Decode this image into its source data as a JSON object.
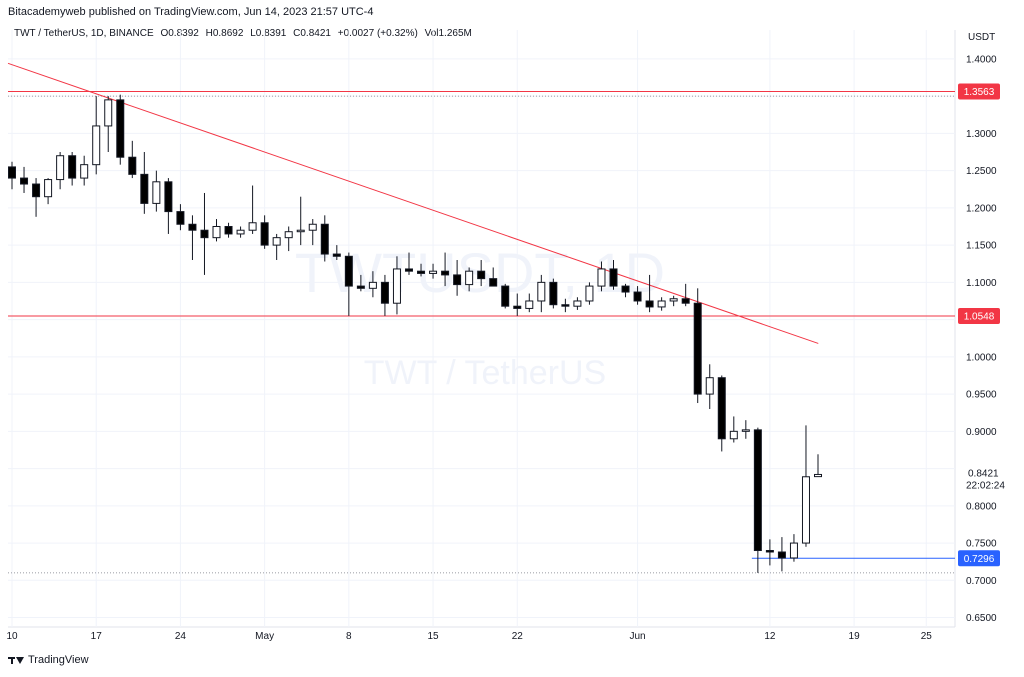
{
  "header": {
    "publisher": "Bitacademyweb published on TradingView.com, Jun 14, 2023 21:57 UTC-4"
  },
  "symbol_info": {
    "pair": "TWT / TetherUS, 1D, BINANCE",
    "open": "O0.8392",
    "high": "H0.8692",
    "low": "L0.8391",
    "close": "C0.8421",
    "change": "+0.0027 (+0.32%)",
    "volume": "Vol1.265M"
  },
  "watermark": {
    "ticker": "TWTUSDT, 1D",
    "name": "TWT / TetherUS"
  },
  "footer": {
    "brand": "TradingView"
  },
  "colors": {
    "up": "#ffffff",
    "down": "#000000",
    "wick": "#131722",
    "trendline": "#f23645",
    "level_line": "#f23645",
    "current_line": "#2962ff",
    "grid": "#f0f3fa"
  },
  "chart_data": {
    "type": "candlestick",
    "currency": "USDT",
    "ylim": [
      0.64,
      1.42
    ],
    "y_ticks": [
      "1.4000",
      "1.3500",
      "1.3000",
      "1.2500",
      "1.2000",
      "1.1500",
      "1.1000",
      "1.0500",
      "1.0000",
      "0.9500",
      "0.9000",
      "0.8500",
      "0.8000",
      "0.7500",
      "0.7000",
      "0.6500"
    ],
    "x_tick_labels": [
      "10",
      "17",
      "24",
      "May",
      "8",
      "15",
      "22",
      "Jun",
      "12",
      "19",
      "25"
    ],
    "x_tick_dates": [
      "2023-04-10",
      "2023-04-17",
      "2023-04-24",
      "2023-05-01",
      "2023-05-08",
      "2023-05-15",
      "2023-05-22",
      "2023-06-01",
      "2023-06-12",
      "2023-06-19",
      "2023-06-25"
    ],
    "candles": [
      {
        "date": "2023-04-10",
        "o": 1.255,
        "h": 1.262,
        "l": 1.225,
        "c": 1.24
      },
      {
        "date": "2023-04-11",
        "o": 1.24,
        "h": 1.255,
        "l": 1.22,
        "c": 1.232
      },
      {
        "date": "2023-04-12",
        "o": 1.232,
        "h": 1.24,
        "l": 1.188,
        "c": 1.215
      },
      {
        "date": "2023-04-13",
        "o": 1.215,
        "h": 1.24,
        "l": 1.205,
        "c": 1.238
      },
      {
        "date": "2023-04-14",
        "o": 1.238,
        "h": 1.275,
        "l": 1.225,
        "c": 1.27
      },
      {
        "date": "2023-04-15",
        "o": 1.27,
        "h": 1.275,
        "l": 1.23,
        "c": 1.24
      },
      {
        "date": "2023-04-16",
        "o": 1.24,
        "h": 1.27,
        "l": 1.23,
        "c": 1.258
      },
      {
        "date": "2023-04-17",
        "o": 1.258,
        "h": 1.35,
        "l": 1.245,
        "c": 1.31
      },
      {
        "date": "2023-04-18",
        "o": 1.31,
        "h": 1.35,
        "l": 1.275,
        "c": 1.345
      },
      {
        "date": "2023-04-19",
        "o": 1.345,
        "h": 1.352,
        "l": 1.258,
        "c": 1.268
      },
      {
        "date": "2023-04-20",
        "o": 1.268,
        "h": 1.29,
        "l": 1.24,
        "c": 1.245
      },
      {
        "date": "2023-04-21",
        "o": 1.245,
        "h": 1.275,
        "l": 1.192,
        "c": 1.206
      },
      {
        "date": "2023-04-22",
        "o": 1.206,
        "h": 1.25,
        "l": 1.195,
        "c": 1.235
      },
      {
        "date": "2023-04-23",
        "o": 1.235,
        "h": 1.24,
        "l": 1.165,
        "c": 1.195
      },
      {
        "date": "2023-04-24",
        "o": 1.195,
        "h": 1.205,
        "l": 1.17,
        "c": 1.178
      },
      {
        "date": "2023-04-25",
        "o": 1.178,
        "h": 1.19,
        "l": 1.13,
        "c": 1.17
      },
      {
        "date": "2023-04-26",
        "o": 1.17,
        "h": 1.22,
        "l": 1.11,
        "c": 1.16
      },
      {
        "date": "2023-04-27",
        "o": 1.16,
        "h": 1.185,
        "l": 1.155,
        "c": 1.175
      },
      {
        "date": "2023-04-28",
        "o": 1.175,
        "h": 1.18,
        "l": 1.16,
        "c": 1.165
      },
      {
        "date": "2023-04-29",
        "o": 1.165,
        "h": 1.175,
        "l": 1.16,
        "c": 1.17
      },
      {
        "date": "2023-04-30",
        "o": 1.17,
        "h": 1.23,
        "l": 1.165,
        "c": 1.18
      },
      {
        "date": "2023-05-01",
        "o": 1.18,
        "h": 1.19,
        "l": 1.145,
        "c": 1.15
      },
      {
        "date": "2023-05-02",
        "o": 1.15,
        "h": 1.165,
        "l": 1.13,
        "c": 1.16
      },
      {
        "date": "2023-05-03",
        "o": 1.16,
        "h": 1.175,
        "l": 1.142,
        "c": 1.168
      },
      {
        "date": "2023-05-04",
        "o": 1.168,
        "h": 1.215,
        "l": 1.15,
        "c": 1.17
      },
      {
        "date": "2023-05-05",
        "o": 1.17,
        "h": 1.185,
        "l": 1.15,
        "c": 1.178
      },
      {
        "date": "2023-05-06",
        "o": 1.178,
        "h": 1.19,
        "l": 1.128,
        "c": 1.138
      },
      {
        "date": "2023-05-07",
        "o": 1.138,
        "h": 1.15,
        "l": 1.13,
        "c": 1.135
      },
      {
        "date": "2023-05-08",
        "o": 1.135,
        "h": 1.14,
        "l": 1.055,
        "c": 1.095
      },
      {
        "date": "2023-05-09",
        "o": 1.095,
        "h": 1.11,
        "l": 1.088,
        "c": 1.092
      },
      {
        "date": "2023-05-10",
        "o": 1.092,
        "h": 1.115,
        "l": 1.08,
        "c": 1.1
      },
      {
        "date": "2023-05-11",
        "o": 1.1,
        "h": 1.11,
        "l": 1.055,
        "c": 1.072
      },
      {
        "date": "2023-05-12",
        "o": 1.072,
        "h": 1.135,
        "l": 1.057,
        "c": 1.118
      },
      {
        "date": "2023-05-13",
        "o": 1.118,
        "h": 1.14,
        "l": 1.11,
        "c": 1.115
      },
      {
        "date": "2023-05-14",
        "o": 1.115,
        "h": 1.125,
        "l": 1.108,
        "c": 1.112
      },
      {
        "date": "2023-05-15",
        "o": 1.112,
        "h": 1.125,
        "l": 1.105,
        "c": 1.115
      },
      {
        "date": "2023-05-16",
        "o": 1.115,
        "h": 1.14,
        "l": 1.095,
        "c": 1.11
      },
      {
        "date": "2023-05-17",
        "o": 1.11,
        "h": 1.13,
        "l": 1.082,
        "c": 1.097
      },
      {
        "date": "2023-05-18",
        "o": 1.097,
        "h": 1.12,
        "l": 1.088,
        "c": 1.115
      },
      {
        "date": "2023-05-19",
        "o": 1.115,
        "h": 1.13,
        "l": 1.095,
        "c": 1.105
      },
      {
        "date": "2023-05-20",
        "o": 1.105,
        "h": 1.12,
        "l": 1.095,
        "c": 1.095
      },
      {
        "date": "2023-05-21",
        "o": 1.095,
        "h": 1.098,
        "l": 1.065,
        "c": 1.068
      },
      {
        "date": "2023-05-22",
        "o": 1.068,
        "h": 1.085,
        "l": 1.055,
        "c": 1.065
      },
      {
        "date": "2023-05-23",
        "o": 1.065,
        "h": 1.085,
        "l": 1.06,
        "c": 1.075
      },
      {
        "date": "2023-05-24",
        "o": 1.075,
        "h": 1.11,
        "l": 1.06,
        "c": 1.1
      },
      {
        "date": "2023-05-25",
        "o": 1.1,
        "h": 1.105,
        "l": 1.065,
        "c": 1.07
      },
      {
        "date": "2023-05-26",
        "o": 1.07,
        "h": 1.078,
        "l": 1.06,
        "c": 1.068
      },
      {
        "date": "2023-05-27",
        "o": 1.068,
        "h": 1.08,
        "l": 1.063,
        "c": 1.075
      },
      {
        "date": "2023-05-28",
        "o": 1.075,
        "h": 1.1,
        "l": 1.07,
        "c": 1.095
      },
      {
        "date": "2023-05-29",
        "o": 1.095,
        "h": 1.128,
        "l": 1.088,
        "c": 1.118
      },
      {
        "date": "2023-05-30",
        "o": 1.118,
        "h": 1.13,
        "l": 1.09,
        "c": 1.095
      },
      {
        "date": "2023-05-31",
        "o": 1.095,
        "h": 1.098,
        "l": 1.08,
        "c": 1.087
      },
      {
        "date": "2023-06-01",
        "o": 1.087,
        "h": 1.095,
        "l": 1.07,
        "c": 1.075
      },
      {
        "date": "2023-06-02",
        "o": 1.075,
        "h": 1.11,
        "l": 1.06,
        "c": 1.067
      },
      {
        "date": "2023-06-03",
        "o": 1.067,
        "h": 1.08,
        "l": 1.062,
        "c": 1.075
      },
      {
        "date": "2023-06-04",
        "o": 1.075,
        "h": 1.082,
        "l": 1.068,
        "c": 1.078
      },
      {
        "date": "2023-06-05",
        "o": 1.078,
        "h": 1.098,
        "l": 1.068,
        "c": 1.072
      },
      {
        "date": "2023-06-06",
        "o": 1.072,
        "h": 1.092,
        "l": 0.938,
        "c": 0.95
      },
      {
        "date": "2023-06-07",
        "o": 0.95,
        "h": 0.99,
        "l": 0.93,
        "c": 0.972
      },
      {
        "date": "2023-06-08",
        "o": 0.972,
        "h": 0.975,
        "l": 0.873,
        "c": 0.89
      },
      {
        "date": "2023-06-09",
        "o": 0.89,
        "h": 0.92,
        "l": 0.885,
        "c": 0.9
      },
      {
        "date": "2023-06-10",
        "o": 0.9,
        "h": 0.915,
        "l": 0.89,
        "c": 0.902
      },
      {
        "date": "2023-06-11",
        "o": 0.902,
        "h": 0.905,
        "l": 0.71,
        "c": 0.74
      },
      {
        "date": "2023-06-12",
        "o": 0.74,
        "h": 0.755,
        "l": 0.72,
        "c": 0.738
      },
      {
        "date": "2023-06-13",
        "o": 0.738,
        "h": 0.758,
        "l": 0.712,
        "c": 0.73
      },
      {
        "date": "2023-06-14",
        "o": 0.73,
        "h": 0.762,
        "l": 0.725,
        "c": 0.75
      },
      {
        "date": "2023-06-15",
        "o": 0.75,
        "h": 0.908,
        "l": 0.745,
        "c": 0.839
      },
      {
        "date": "2023-06-16",
        "o": 0.8392,
        "h": 0.8692,
        "l": 0.8391,
        "c": 0.8421
      }
    ],
    "trendline": {
      "start": {
        "date": "2023-04-18",
        "value": 1.353
      },
      "end": {
        "date": "2023-06-25",
        "value": 1.018
      }
    },
    "horizontal_levels": [
      {
        "value": 1.3563,
        "label": "1.3563",
        "color": "#f23645"
      },
      {
        "value": 1.0548,
        "label": "1.0548",
        "color": "#f23645"
      },
      {
        "value": 0.7296,
        "label": "0.7296",
        "color": "#2962ff"
      }
    ],
    "current_price": {
      "label": "0.8421",
      "countdown": "22:02:24"
    },
    "dotted_levels": [
      1.35,
      0.71
    ]
  }
}
